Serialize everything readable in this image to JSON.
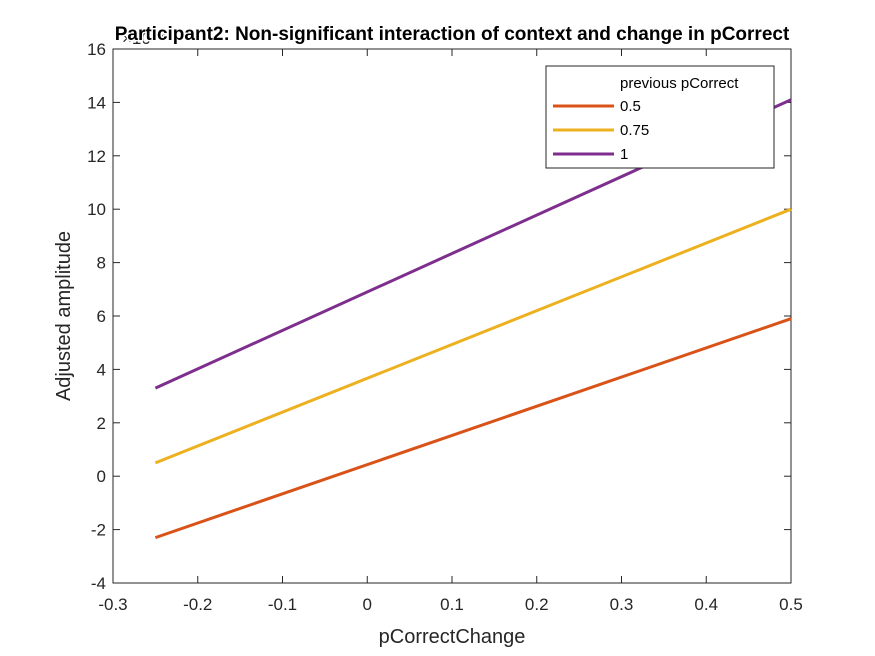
{
  "chart_data": {
    "type": "line",
    "title": "Participant2: Non-significant interaction of context and change in pCorrect",
    "xlabel": "pCorrectChange",
    "ylabel": "Adjusted amplitude",
    "exponent_label": "×10⁻⁴",
    "xlim": [
      -0.3,
      0.5
    ],
    "ylim": [
      -4,
      16
    ],
    "x_ticks": [
      -0.3,
      -0.2,
      -0.1,
      0,
      0.1,
      0.2,
      0.3,
      0.4,
      0.5
    ],
    "x_tick_labels": [
      "-0.3",
      "-0.2",
      "-0.1",
      "0",
      "0.1",
      "0.2",
      "0.3",
      "0.4",
      "0.5"
    ],
    "y_ticks": [
      -4,
      -2,
      0,
      2,
      4,
      6,
      8,
      10,
      12,
      14,
      16
    ],
    "y_tick_labels": [
      "-4",
      "-2",
      "0",
      "2",
      "4",
      "6",
      "8",
      "10",
      "12",
      "14",
      "16"
    ],
    "grid": false,
    "legend": {
      "title": "previous pCorrect",
      "placement": "top-right"
    },
    "series": [
      {
        "name": "0.5",
        "color": "#D95319",
        "x": [
          -0.25,
          0.5
        ],
        "y": [
          -2.3,
          5.9
        ]
      },
      {
        "name": "0.75",
        "color": "#EDB120",
        "x": [
          -0.25,
          0.5
        ],
        "y": [
          0.5,
          10.0
        ]
      },
      {
        "name": "1",
        "color": "#7E2F8E",
        "x": [
          -0.25,
          0.5
        ],
        "y": [
          3.3,
          14.1
        ]
      }
    ]
  }
}
